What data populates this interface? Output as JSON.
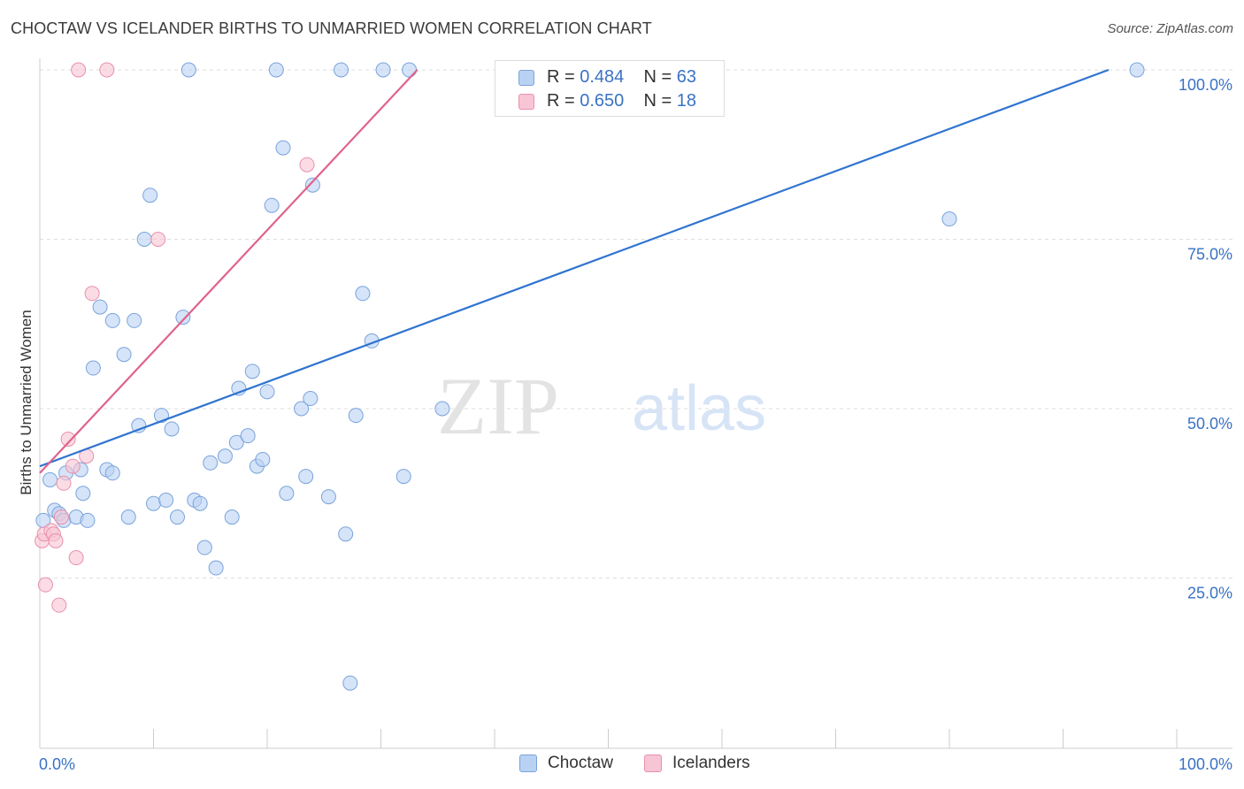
{
  "title": "CHOCTAW VS ICELANDER BIRTHS TO UNMARRIED WOMEN CORRELATION CHART",
  "source": "Source: ZipAtlas.com",
  "watermark": {
    "part1": "ZIP",
    "part2": "atlas"
  },
  "legend": {
    "rows": [
      {
        "r_label": "R = ",
        "r_value": "0.484",
        "n_label": "N = ",
        "n_value": "63"
      },
      {
        "r_label": "R = ",
        "r_value": "0.650",
        "n_label": "N = ",
        "n_value": "18"
      }
    ]
  },
  "colors": {
    "choctaw_fill": "#b9d2f3",
    "choctaw_stroke": "#7aa3dc",
    "choctaw_line": "#2f74d0",
    "icelanders_fill": "#f8c5d4",
    "icelanders_stroke": "#e990ad",
    "icelanders_line": "#e0638b",
    "tick_label": "#3a72c4",
    "grid": "#dddddd"
  },
  "chart_data": {
    "type": "scatter",
    "title": "CHOCTAW VS ICELANDER BIRTHS TO UNMARRIED WOMEN CORRELATION CHART",
    "xlabel": "",
    "ylabel": "Births to Unmarried Women",
    "xlim": [
      0,
      100
    ],
    "ylim": [
      0,
      102
    ],
    "x_tick_labels": [
      "0.0%",
      "100.0%"
    ],
    "y_ticks": [
      25,
      50,
      75,
      100
    ],
    "y_tick_labels": [
      "25.0%",
      "50.0%",
      "75.0%",
      "100.0%"
    ],
    "grid": true,
    "series": [
      {
        "name": "Choctaw",
        "points": [
          [
            0.3,
            33.5
          ],
          [
            0.9,
            39.5
          ],
          [
            1.3,
            35.0
          ],
          [
            1.7,
            34.5
          ],
          [
            2.1,
            33.5
          ],
          [
            2.3,
            40.5
          ],
          [
            3.2,
            34.0
          ],
          [
            3.6,
            41.0
          ],
          [
            3.8,
            37.5
          ],
          [
            4.2,
            33.5
          ],
          [
            4.7,
            56.0
          ],
          [
            5.3,
            65.0
          ],
          [
            5.9,
            41.0
          ],
          [
            6.4,
            40.5
          ],
          [
            6.4,
            63.0
          ],
          [
            7.4,
            58.0
          ],
          [
            7.8,
            34.0
          ],
          [
            8.3,
            63.0
          ],
          [
            8.7,
            47.5
          ],
          [
            9.2,
            75.0
          ],
          [
            9.7,
            81.5
          ],
          [
            10.0,
            36.0
          ],
          [
            10.7,
            49.0
          ],
          [
            11.1,
            36.5
          ],
          [
            11.6,
            47.0
          ],
          [
            12.1,
            34.0
          ],
          [
            12.6,
            63.5
          ],
          [
            13.1,
            100.0
          ],
          [
            13.6,
            36.5
          ],
          [
            14.1,
            36.0
          ],
          [
            14.5,
            29.5
          ],
          [
            15.0,
            42.0
          ],
          [
            15.5,
            26.5
          ],
          [
            16.3,
            43.0
          ],
          [
            16.9,
            34.0
          ],
          [
            17.3,
            45.0
          ],
          [
            17.5,
            53.0
          ],
          [
            18.3,
            46.0
          ],
          [
            18.7,
            55.5
          ],
          [
            19.1,
            41.5
          ],
          [
            19.6,
            42.5
          ],
          [
            20.0,
            52.5
          ],
          [
            20.4,
            80.0
          ],
          [
            20.8,
            100.0
          ],
          [
            21.4,
            88.5
          ],
          [
            21.7,
            37.5
          ],
          [
            23.0,
            50.0
          ],
          [
            23.4,
            40.0
          ],
          [
            23.8,
            51.5
          ],
          [
            24.0,
            83.0
          ],
          [
            25.4,
            37.0
          ],
          [
            26.5,
            100.0
          ],
          [
            26.9,
            31.5
          ],
          [
            27.3,
            9.5
          ],
          [
            27.8,
            49.0
          ],
          [
            28.4,
            67.0
          ],
          [
            29.2,
            60.0
          ],
          [
            30.2,
            100.0
          ],
          [
            32.0,
            40.0
          ],
          [
            32.5,
            100.0
          ],
          [
            35.4,
            50.0
          ],
          [
            80.0,
            78.0
          ],
          [
            96.5,
            100.0
          ]
        ],
        "trend": {
          "x": [
            0,
            94
          ],
          "y": [
            41.5,
            100.0
          ]
        }
      },
      {
        "name": "Icelanders",
        "points": [
          [
            0.2,
            30.5
          ],
          [
            0.4,
            31.5
          ],
          [
            0.5,
            24.0
          ],
          [
            1.0,
            32.0
          ],
          [
            1.2,
            31.5
          ],
          [
            1.4,
            30.5
          ],
          [
            1.7,
            21.0
          ],
          [
            1.9,
            34.0
          ],
          [
            2.1,
            39.0
          ],
          [
            2.5,
            45.5
          ],
          [
            2.9,
            41.5
          ],
          [
            3.2,
            28.0
          ],
          [
            4.1,
            43.0
          ],
          [
            4.6,
            67.0
          ],
          [
            3.4,
            100.0
          ],
          [
            5.9,
            100.0
          ],
          [
            10.4,
            75.0
          ],
          [
            23.5,
            86.0
          ]
        ],
        "trend": {
          "x": [
            0,
            33.2
          ],
          "y": [
            40.5,
            100.0
          ]
        }
      }
    ],
    "legend_entries": [
      "Choctaw",
      "Icelanders"
    ]
  }
}
